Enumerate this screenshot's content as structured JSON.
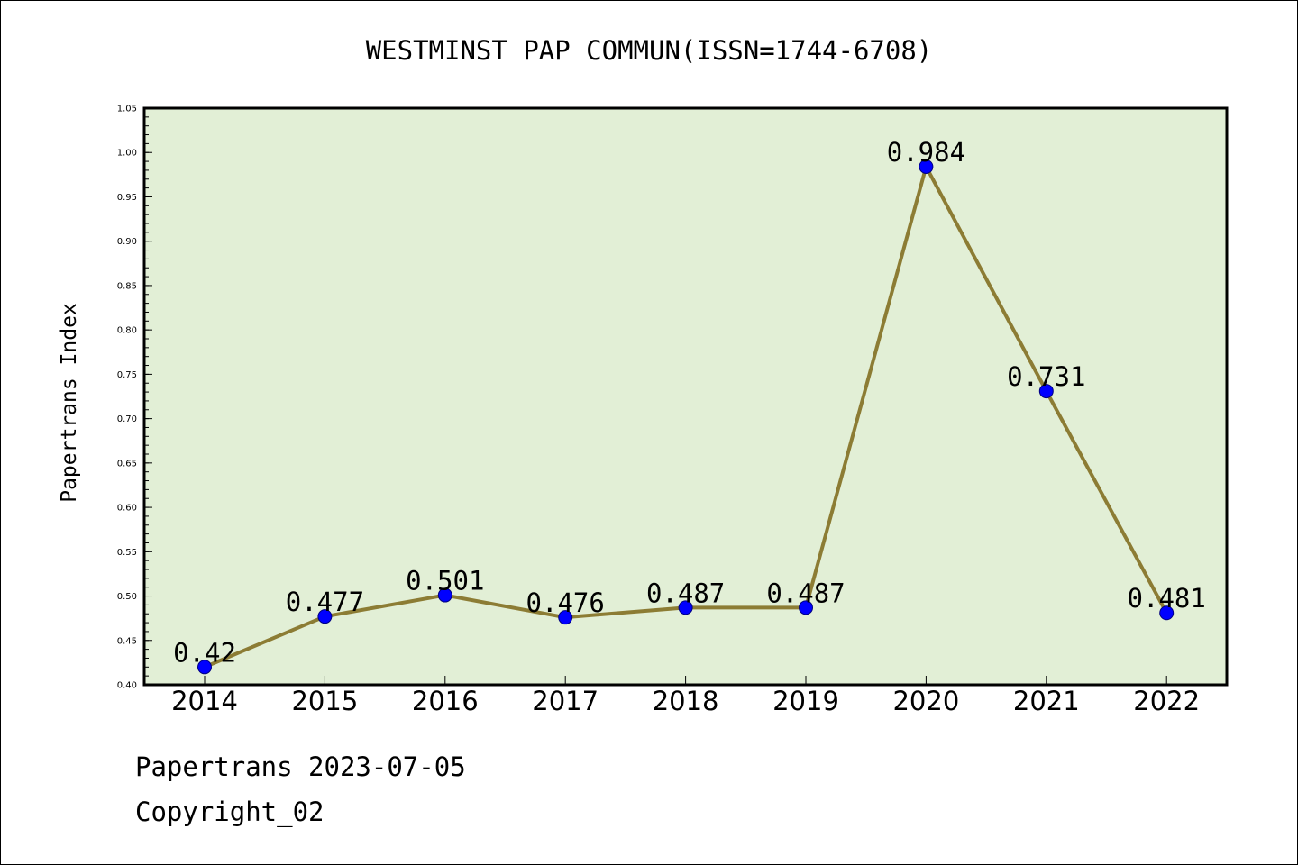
{
  "chart_data": {
    "type": "line",
    "title": "WESTMINST PAP COMMUN(ISSN=1744-6708)",
    "xlabel": "",
    "ylabel": "Papertrans Index",
    "categories": [
      "2014",
      "2015",
      "2016",
      "2017",
      "2018",
      "2019",
      "2020",
      "2021",
      "2022"
    ],
    "series": [
      {
        "values": [
          0.42,
          0.477,
          0.501,
          0.476,
          0.487,
          0.487,
          0.984,
          0.731,
          0.481
        ],
        "labels": [
          "0.42",
          "0.477",
          "0.501",
          "0.476",
          "0.487",
          "0.487",
          "0.984",
          "0.731",
          "0.481"
        ]
      }
    ],
    "ylim": [
      0.4,
      1.05
    ],
    "yticks": [
      "0.40",
      "0.45",
      "0.50",
      "0.55",
      "0.60",
      "0.65",
      "0.70",
      "0.75",
      "0.80",
      "0.85",
      "0.90",
      "0.95",
      "1.00",
      "1.05"
    ],
    "grid": false,
    "legend": "none"
  },
  "footer": {
    "line1": "Papertrans 2023-07-05",
    "line2": "Copyright_02"
  },
  "colors": {
    "plot_background": "#e2efd6",
    "line": "#8c7c34",
    "marker": "#0000ff",
    "marker_edge": "#000080"
  }
}
